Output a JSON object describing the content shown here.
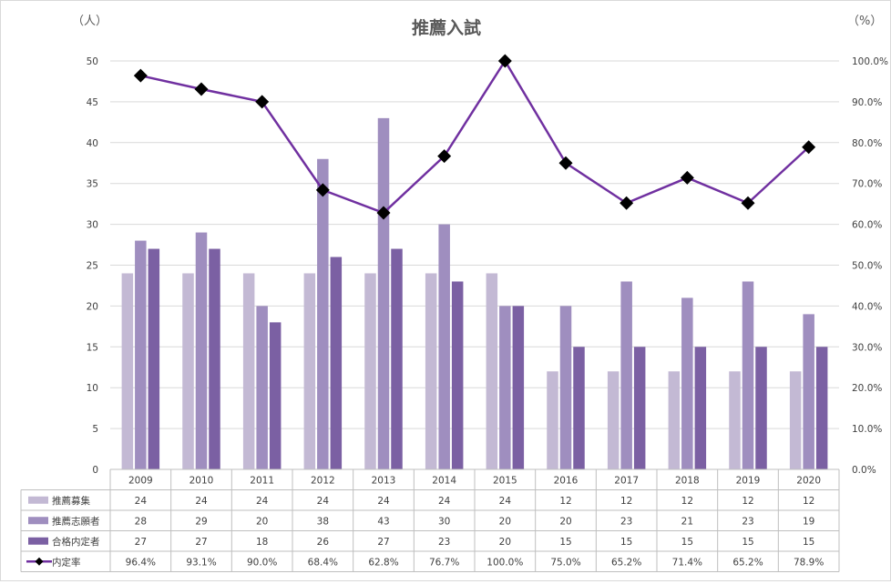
{
  "chart_data": {
    "type": "bar",
    "title": "推薦入試",
    "left_axis_unit": "（人）",
    "right_axis_unit": "（%）",
    "categories": [
      "2009",
      "2010",
      "2011",
      "2012",
      "2013",
      "2014",
      "2015",
      "2016",
      "2017",
      "2018",
      "2019",
      "2020"
    ],
    "series": [
      {
        "name": "推薦募集",
        "type": "bar",
        "axis": "left",
        "color": "#c3b9d4",
        "values": [
          24,
          24,
          24,
          24,
          24,
          24,
          24,
          12,
          12,
          12,
          12,
          12
        ]
      },
      {
        "name": "推薦志願者",
        "type": "bar",
        "axis": "left",
        "color": "#9f8ebf",
        "values": [
          28,
          29,
          20,
          38,
          43,
          30,
          20,
          20,
          23,
          21,
          23,
          19
        ]
      },
      {
        "name": "合格内定者",
        "type": "bar",
        "axis": "left",
        "color": "#7b60a3",
        "values": [
          27,
          27,
          18,
          26,
          27,
          23,
          20,
          15,
          15,
          15,
          15,
          15
        ]
      },
      {
        "name": "内定率",
        "type": "line",
        "axis": "right",
        "color": "#7030a0",
        "marker_color": "#000000",
        "values": [
          96.4,
          93.1,
          90.0,
          68.4,
          62.8,
          76.7,
          100.0,
          75.0,
          65.2,
          71.4,
          65.2,
          78.9
        ],
        "labels": [
          "96.4%",
          "93.1%",
          "90.0%",
          "68.4%",
          "62.8%",
          "76.7%",
          "100.0%",
          "75.0%",
          "65.2%",
          "71.4%",
          "65.2%",
          "78.9%"
        ]
      }
    ],
    "left_axis": {
      "min": 0,
      "max": 50,
      "step": 5
    },
    "right_axis": {
      "min": 0,
      "max": 100,
      "step": 10,
      "tick_labels": [
        "0.0%",
        "10.0%",
        "20.0%",
        "30.0%",
        "40.0%",
        "50.0%",
        "60.0%",
        "70.0%",
        "80.0%",
        "90.0%",
        "100.0%"
      ]
    },
    "grid": true,
    "legend": "data-table"
  }
}
